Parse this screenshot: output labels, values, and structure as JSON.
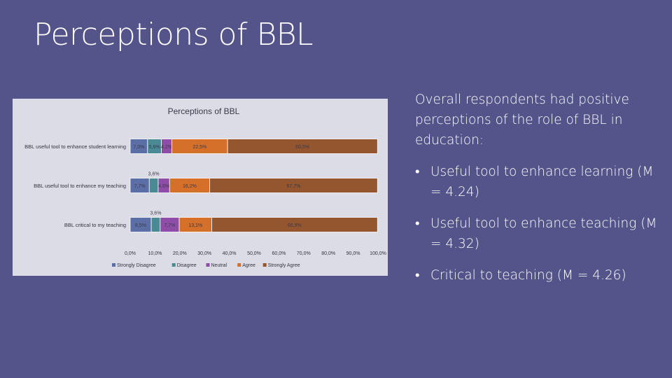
{
  "slide": {
    "title": "Perceptions of BBL",
    "intro": "Overall respondents had positive perceptions of the role of BBL in education:",
    "bullets": [
      "Useful tool to enhance learning (M = 4.24)",
      "Useful tool to enhance teaching (M = 4.32)",
      "Critical to teaching (M = 4.26)"
    ]
  },
  "chart_data": {
    "type": "bar",
    "orientation": "horizontal",
    "stacked": true,
    "percent": true,
    "title": "Perceptions of BBL",
    "categories": [
      "BBL useful tool to enhance student learning",
      "BBL useful tool to enhance my teaching",
      "BBL critical to my teaching"
    ],
    "series": [
      {
        "name": "Strongly Disagree",
        "color": "#5b6ea6",
        "values": [
          7.0,
          7.7,
          8.5
        ],
        "labels": [
          "7,0%",
          "7,7%",
          "8,5%"
        ]
      },
      {
        "name": "Disagree",
        "color": "#4a8a94",
        "values": [
          5.6,
          3.6,
          3.6
        ],
        "labels": [
          "5,6%",
          "3,6%",
          "3,6%"
        ]
      },
      {
        "name": "Neutral",
        "color": "#8e4ea8",
        "values": [
          4.2,
          4.6,
          7.7
        ],
        "labels": [
          "4,2%",
          "4,6%",
          "7,7%"
        ]
      },
      {
        "name": "Agree",
        "color": "#d4702a",
        "values": [
          22.5,
          16.2,
          13.1
        ],
        "labels": [
          "22,5%",
          "16,2%",
          "13,1%"
        ]
      },
      {
        "name": "Strongly Agree",
        "color": "#94562f",
        "values": [
          60.5,
          67.7,
          66.9
        ],
        "labels": [
          "60,5%",
          "67,7%",
          "66,9%"
        ]
      }
    ],
    "xlim": [
      0,
      100
    ],
    "x_ticks": [
      "0,0%",
      "10,0%",
      "20,0%",
      "30,0%",
      "40,0%",
      "50,0%",
      "60,0%",
      "70,0%",
      "80,0%",
      "90,0%",
      "100,0%"
    ],
    "grid": false,
    "legend": "bottom"
  }
}
